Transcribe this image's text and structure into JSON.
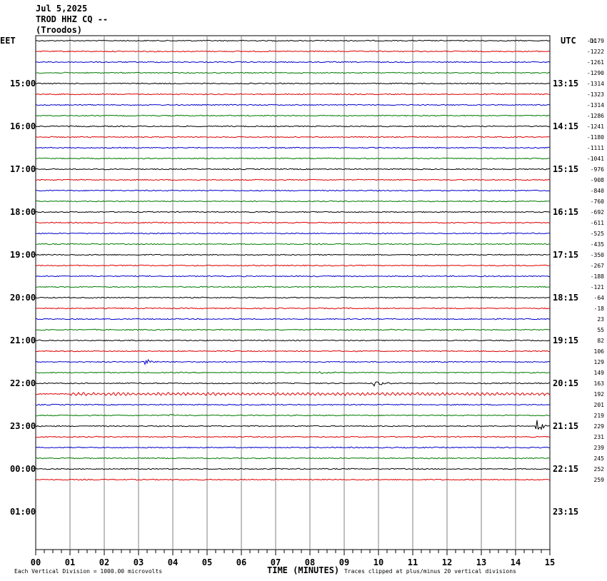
{
  "header": {
    "date": "Jul 5,2025",
    "station": "TROD HHZ CQ --",
    "location": "(Troodos)"
  },
  "left_zone": "EET",
  "right_zone": "UTC",
  "dc_label": "DC",
  "footer": {
    "scale_note": "Each Vertical Division = 1000.00 microvolts",
    "time_label": "TIME (MINUTES)",
    "clip_note": "Traces clipped at plus/minus 20 vertical divisions"
  },
  "colors": {
    "trace_cycle": [
      "#000000",
      "#e00000",
      "#0000cc",
      "#007a00"
    ],
    "grid": "#808080"
  },
  "chart_data": {
    "type": "line",
    "title": "TROD HHZ CQ --",
    "xlabel": "TIME (MINUTES)",
    "xlim": [
      0,
      15
    ],
    "x_ticks": [
      "00",
      "01",
      "02",
      "03",
      "04",
      "05",
      "06",
      "07",
      "08",
      "09",
      "10",
      "11",
      "12",
      "13",
      "14",
      "15"
    ],
    "left_hour_labels": [
      {
        "row": 4,
        "label": "15:00"
      },
      {
        "row": 8,
        "label": "16:00"
      },
      {
        "row": 12,
        "label": "17:00"
      },
      {
        "row": 16,
        "label": "18:00"
      },
      {
        "row": 20,
        "label": "19:00"
      },
      {
        "row": 24,
        "label": "20:00"
      },
      {
        "row": 28,
        "label": "21:00"
      },
      {
        "row": 32,
        "label": "22:00"
      },
      {
        "row": 36,
        "label": "23:00"
      },
      {
        "row": 40,
        "label": "00:00"
      },
      {
        "row": 44,
        "label": "01:00"
      }
    ],
    "right_hour_labels": [
      {
        "row": 4,
        "label": "13:15"
      },
      {
        "row": 8,
        "label": "14:15"
      },
      {
        "row": 12,
        "label": "15:15"
      },
      {
        "row": 16,
        "label": "16:15"
      },
      {
        "row": 20,
        "label": "17:15"
      },
      {
        "row": 24,
        "label": "18:15"
      },
      {
        "row": 28,
        "label": "19:15"
      },
      {
        "row": 32,
        "label": "20:15"
      },
      {
        "row": 36,
        "label": "21:15"
      },
      {
        "row": 40,
        "label": "22:15"
      },
      {
        "row": 44,
        "label": "23:15"
      }
    ],
    "dc_offsets": [
      "-1179",
      "-1222",
      "-1261",
      "-1290",
      "-1314",
      "-1323",
      "-1314",
      "-1286",
      "-1241",
      "-1180",
      "-1111",
      "-1041",
      "-976",
      "-908",
      "-840",
      "-760",
      "-692",
      "-611",
      "-525",
      "-435",
      "-350",
      "-267",
      "-188",
      "-121",
      "-64",
      "-18",
      "23",
      "55",
      "82",
      "106",
      "129",
      "149",
      "163",
      "192",
      "201",
      "219",
      "229",
      "231",
      "239",
      "245",
      "252",
      "259"
    ],
    "events": [
      {
        "row": 30,
        "minute": 3.2,
        "amplitude": 6
      },
      {
        "row": 31,
        "minute": 8.3,
        "amplitude": 2
      },
      {
        "row": 32,
        "minute": 9.85,
        "amplitude": 7
      },
      {
        "row": 33,
        "minute": 3.0,
        "amplitude": 3,
        "noise": true
      },
      {
        "row": 35,
        "minute": 3.9,
        "amplitude": 2
      },
      {
        "row": 36,
        "minute": 14.6,
        "amplitude": 11
      }
    ]
  }
}
